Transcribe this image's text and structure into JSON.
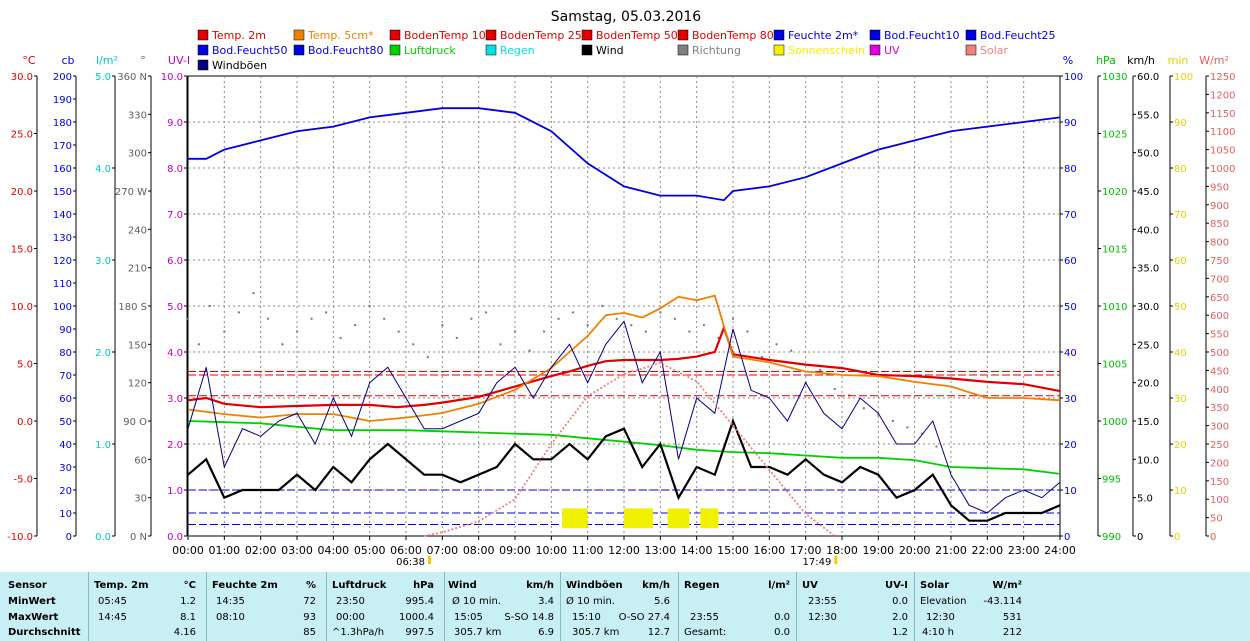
{
  "title": "Samstag, 05.03.2016",
  "legend": [
    {
      "label": "Temp. 2m",
      "color": "#e00000"
    },
    {
      "label": "Temp. 5cm*",
      "color": "#f08000"
    },
    {
      "label": "BodenTemp 10",
      "color": "#e00000"
    },
    {
      "label": "BodenTemp 25",
      "color": "#e00000"
    },
    {
      "label": "BodenTemp 50",
      "color": "#e00000"
    },
    {
      "label": "BodenTemp 80",
      "color": "#e00000"
    },
    {
      "label": "Feuchte 2m*",
      "color": "#0000e0"
    },
    {
      "label": "Bod.Feucht10",
      "color": "#0000e0"
    },
    {
      "label": "Bod.Feucht25",
      "color": "#0000e0"
    },
    {
      "label": "Bod.Feucht50",
      "color": "#0000e0"
    },
    {
      "label": "Bod.Feucht80",
      "color": "#0000e0"
    },
    {
      "label": "Luftdruck",
      "color": "#00d000"
    },
    {
      "label": "Regen",
      "color": "#00e0e0"
    },
    {
      "label": "Wind",
      "color": "#000000"
    },
    {
      "label": "Richtung",
      "color": "#808080"
    },
    {
      "label": "Sonnenschein",
      "color": "#f0f000"
    },
    {
      "label": "UV",
      "color": "#e000e0"
    },
    {
      "label": "Solar",
      "color": "#f08080"
    },
    {
      "label": "Windböen",
      "color": "#000080"
    }
  ],
  "chart_data": {
    "type": "line",
    "title": "Samstag, 05.03.2016",
    "x_ticks": [
      "00:00",
      "01:00",
      "02:00",
      "03:00",
      "04:00",
      "05:00",
      "06:00",
      "07:00",
      "08:00",
      "09:00",
      "10:00",
      "11:00",
      "12:00",
      "13:00",
      "14:00",
      "15:00",
      "16:00",
      "17:00",
      "18:00",
      "19:00",
      "20:00",
      "21:00",
      "22:00",
      "23:00",
      "24:00"
    ],
    "sunrise": "06:38",
    "sunset": "17:49",
    "grid": true,
    "axes": {
      "temp": {
        "unit": "°C",
        "color": "#e00000",
        "min": -10,
        "max": 30,
        "ticks": [
          "-10.0",
          "-5.0",
          "0.0",
          "5.0",
          "10.0",
          "15.0",
          "20.0",
          "25.0",
          "30.0"
        ]
      },
      "cb": {
        "unit": "cb",
        "color": "#0000e0",
        "min": 0,
        "max": 200,
        "ticks": [
          "0",
          "10",
          "20",
          "30",
          "40",
          "50",
          "60",
          "70",
          "80",
          "90",
          "100",
          "110",
          "120",
          "130",
          "140",
          "150",
          "160",
          "170",
          "180",
          "190",
          "200"
        ]
      },
      "rain": {
        "unit": "l/m²",
        "color": "#00c8c8",
        "min": 0,
        "max": 5,
        "ticks": [
          "0.0",
          "1.0",
          "2.0",
          "3.0",
          "4.0",
          "5.0"
        ]
      },
      "dir": {
        "unit": "°",
        "color": "#606060",
        "min": 0,
        "max": 360,
        "ticks": [
          "0 N",
          "30",
          "60",
          "90 O",
          "120",
          "150",
          "180 S",
          "210",
          "240",
          "270 W",
          "300",
          "330",
          "360 N"
        ]
      },
      "uv": {
        "unit": "UV-I",
        "color": "#c000c0",
        "min": 0,
        "max": 10,
        "ticks": [
          "0.0",
          "1.0",
          "2.0",
          "3.0",
          "4.0",
          "5.0",
          "6.0",
          "7.0",
          "8.0",
          "9.0",
          "10.0"
        ]
      },
      "hum": {
        "unit": "%",
        "color": "#0000e0",
        "min": 0,
        "max": 100,
        "ticks": [
          "0",
          "10",
          "20",
          "30",
          "40",
          "50",
          "60",
          "70",
          "80",
          "90",
          "100"
        ]
      },
      "press": {
        "unit": "hPa",
        "color": "#00c000",
        "min": 990,
        "max": 1030,
        "ticks": [
          "990",
          "995",
          "1000",
          "1005",
          "1010",
          "1015",
          "1020",
          "1025",
          "1030"
        ]
      },
      "wind": {
        "unit": "km/h",
        "color": "#000000",
        "min": 0,
        "max": 60,
        "ticks": [
          "0",
          "5.0",
          "10.0",
          "15.0",
          "20.0",
          "25.0",
          "30.0",
          "35.0",
          "40.0",
          "45.0",
          "50.0",
          "55.0",
          "60.0"
        ]
      },
      "sun": {
        "unit": "min",
        "color": "#e8d000",
        "min": 0,
        "max": 100,
        "ticks": [
          "0",
          "10",
          "20",
          "30",
          "40",
          "50",
          "60",
          "70",
          "80",
          "90",
          "100"
        ]
      },
      "solar": {
        "unit": "W/m²",
        "color": "#e06060",
        "min": 0,
        "max": 1250,
        "ticks": [
          "0",
          "50",
          "100",
          "150",
          "200",
          "250",
          "300",
          "350",
          "400",
          "450",
          "500",
          "550",
          "600",
          "650",
          "700",
          "750",
          "800",
          "850",
          "900",
          "950",
          "1000",
          "1050",
          "1100",
          "1150",
          "1200",
          "1250"
        ]
      }
    },
    "series": [
      {
        "name": "Temp. 2m",
        "axis": "temp",
        "color": "#e00000",
        "x": [
          0,
          0.5,
          1,
          2,
          3,
          4,
          5,
          5.75,
          6.5,
          7,
          8,
          9,
          10,
          10.5,
          11,
          11.5,
          12,
          13,
          13.5,
          14,
          14.5,
          14.75,
          15,
          16,
          17,
          18,
          19,
          20,
          21,
          22,
          23,
          24
        ],
        "y": [
          1.8,
          2.0,
          1.5,
          1.2,
          1.3,
          1.4,
          1.4,
          1.2,
          1.4,
          1.6,
          2.1,
          3.0,
          3.9,
          4.3,
          4.8,
          5.2,
          5.3,
          5.3,
          5.4,
          5.6,
          6.0,
          8.1,
          5.8,
          5.3,
          4.9,
          4.6,
          4.0,
          3.9,
          3.7,
          3.4,
          3.2,
          2.6
        ]
      },
      {
        "name": "Temp. 5cm*",
        "axis": "temp",
        "color": "#f08000",
        "x": [
          0,
          1,
          2,
          3,
          4,
          5,
          6,
          7,
          8,
          9,
          10,
          10.5,
          11,
          11.5,
          12,
          12.5,
          13,
          13.5,
          14,
          14.5,
          15,
          16,
          17,
          18,
          19,
          20,
          21,
          22,
          23,
          24
        ],
        "y": [
          1.0,
          0.6,
          0.3,
          0.6,
          0.6,
          0.0,
          0.3,
          0.7,
          1.5,
          2.7,
          4.6,
          6.0,
          7.4,
          9.2,
          9.4,
          9.0,
          9.8,
          10.8,
          10.5,
          10.9,
          5.6,
          5.1,
          4.3,
          4.0,
          3.9,
          3.4,
          3.0,
          2.0,
          2.0,
          1.8
        ]
      },
      {
        "name": "Feuchte 2m*",
        "axis": "hum",
        "color": "#0000e0",
        "x": [
          0,
          0.5,
          1,
          2,
          3,
          4,
          5,
          6,
          7,
          7.5,
          8,
          9,
          10,
          11,
          12,
          13,
          14,
          14.75,
          15,
          16,
          17,
          18,
          19,
          20,
          21,
          22,
          23,
          24
        ],
        "y": [
          82,
          82,
          84,
          86,
          88,
          89,
          91,
          92,
          93,
          93,
          93,
          92,
          88,
          81,
          76,
          74,
          74,
          73,
          75,
          76,
          78,
          81,
          84,
          86,
          88,
          89,
          90,
          91
        ]
      },
      {
        "name": "Luftdruck",
        "axis": "press",
        "color": "#00d000",
        "x": [
          0,
          1,
          2,
          3,
          4,
          5,
          6,
          7,
          8,
          9,
          10,
          11,
          12,
          13,
          14,
          15,
          16,
          17,
          18,
          19,
          20,
          21,
          22,
          23,
          24
        ],
        "y": [
          1000.0,
          999.9,
          999.8,
          999.5,
          999.2,
          999.2,
          999.2,
          999.1,
          999.0,
          998.9,
          998.8,
          998.5,
          998.2,
          997.9,
          997.5,
          997.3,
          997.2,
          997.0,
          996.8,
          996.8,
          996.6,
          996.0,
          995.9,
          995.8,
          995.4
        ]
      },
      {
        "name": "Wind",
        "axis": "wind",
        "color": "#000000",
        "x": [
          0,
          0.5,
          1,
          1.5,
          2,
          2.5,
          3,
          3.5,
          4,
          4.5,
          5,
          5.5,
          6,
          6.5,
          7,
          7.5,
          8,
          8.5,
          9,
          9.5,
          10,
          10.5,
          11,
          11.5,
          12,
          12.5,
          13,
          13.5,
          14,
          14.5,
          15,
          15.5,
          16,
          16.5,
          17,
          17.5,
          18,
          18.5,
          19,
          19.5,
          20,
          20.5,
          21,
          21.5,
          22,
          22.5,
          23,
          23.5,
          24
        ],
        "y": [
          8,
          10,
          5,
          6,
          6,
          6,
          8,
          6,
          9,
          7,
          10,
          12,
          10,
          8,
          8,
          7,
          8,
          9,
          12,
          10,
          10,
          12,
          10,
          13,
          14,
          9,
          12,
          5,
          9,
          8,
          15,
          9,
          9,
          8,
          10,
          8,
          7,
          9,
          8,
          5,
          6,
          8,
          4,
          2,
          2,
          3,
          3,
          3,
          4
        ]
      },
      {
        "name": "Windböen",
        "axis": "wind",
        "color": "#000080",
        "x": [
          0,
          0.5,
          1,
          1.5,
          2,
          2.5,
          3,
          3.5,
          4,
          4.5,
          5,
          5.5,
          6,
          6.5,
          7,
          7.5,
          8,
          8.5,
          9,
          9.5,
          10,
          10.5,
          11,
          11.5,
          12,
          12.5,
          13,
          13.5,
          14,
          14.5,
          15,
          15.5,
          16,
          16.5,
          17,
          17.5,
          18,
          18.5,
          19,
          19.5,
          20,
          20.5,
          21,
          21.5,
          22,
          22.5,
          23,
          23.5,
          24
        ],
        "y": [
          14,
          22,
          9,
          14,
          13,
          15,
          16,
          12,
          18,
          13,
          20,
          22,
          18,
          14,
          14,
          15,
          16,
          20,
          22,
          18,
          22,
          25,
          20,
          25,
          28,
          20,
          24,
          10,
          18,
          16,
          27,
          19,
          18,
          15,
          20,
          16,
          14,
          18,
          16,
          12,
          12,
          15,
          8,
          4,
          3,
          5,
          6,
          5,
          7
        ]
      },
      {
        "name": "Solar",
        "axis": "solar",
        "color": "#f08080",
        "x": [
          6.5,
          7,
          8,
          9,
          10,
          11,
          12,
          13,
          14,
          15,
          16,
          17,
          17.8
        ],
        "y": [
          0,
          10,
          40,
          100,
          250,
          380,
          440,
          470,
          420,
          300,
          180,
          60,
          0
        ]
      },
      {
        "name": "Sonnenschein",
        "axis": "sun",
        "color": "#f0f000",
        "x": [
          10.3,
          11,
          12,
          12.8,
          13.2,
          13.8,
          14.1,
          14.6,
          15.1
        ],
        "y": [
          6,
          6,
          6,
          6,
          6,
          6,
          6,
          6,
          6
        ]
      }
    ],
    "direction_points": {
      "name": "Richtung",
      "axis": "dir",
      "color": "#808080",
      "x": [
        0,
        0.3,
        0.6,
        1,
        1.4,
        1.8,
        2.2,
        2.6,
        3,
        3.4,
        3.8,
        4.2,
        4.6,
        5,
        5.4,
        5.8,
        6.2,
        6.6,
        7,
        7.4,
        7.8,
        8.2,
        8.6,
        9,
        9.4,
        9.8,
        10.2,
        10.6,
        11,
        11.4,
        11.8,
        12.2,
        12.6,
        13,
        13.4,
        13.8,
        14.2,
        14.6,
        15,
        15.4,
        15.8,
        16.2,
        16.6,
        17,
        17.4,
        17.8,
        18.2,
        18.6,
        19,
        19.4,
        19.8,
        20.2,
        20.6
      ],
      "y": [
        170,
        150,
        180,
        160,
        175,
        190,
        170,
        150,
        160,
        170,
        175,
        155,
        165,
        180,
        170,
        160,
        150,
        140,
        165,
        155,
        170,
        175,
        150,
        160,
        145,
        160,
        170,
        175,
        165,
        180,
        170,
        165,
        160,
        175,
        170,
        160,
        165,
        155,
        170,
        160,
        140,
        150,
        145,
        120,
        130,
        115,
        110,
        100,
        95,
        90,
        85,
        80,
        70
      ]
    }
  },
  "stats": {
    "sensor": {
      "title": "Sensor",
      "rows": [
        "MinWert",
        "MaxWert",
        "Durchschnitt"
      ]
    },
    "temp": {
      "title": "Temp. 2m",
      "unit": "°C",
      "rows": [
        [
          "05:45",
          "1.2"
        ],
        [
          "14:45",
          "8.1"
        ],
        [
          "",
          "4.16"
        ]
      ]
    },
    "hum": {
      "title": "Feuchte 2m",
      "unit": "%",
      "rows": [
        [
          "14:35",
          "72"
        ],
        [
          "08:10",
          "93"
        ],
        [
          "",
          "85"
        ]
      ]
    },
    "press": {
      "title": "Luftdruck",
      "unit": "hPa",
      "rows": [
        [
          "23:50",
          "995.4"
        ],
        [
          "00:00",
          "1000.4"
        ],
        [
          "^1.3hPa/h",
          "997.5"
        ]
      ]
    },
    "wind": {
      "title": "Wind",
      "unit": "km/h",
      "rows": [
        [
          "Ø 10 min.",
          "",
          "3.4"
        ],
        [
          "15:05",
          "S-SO 14.8",
          ""
        ],
        [
          "305.7 km",
          "",
          "6.9"
        ]
      ]
    },
    "gust": {
      "title": "Windböen",
      "unit": "km/h",
      "rows": [
        [
          "Ø 10 min.",
          "",
          "5.6"
        ],
        [
          "15:10",
          "O-SO 27.4",
          ""
        ],
        [
          "305.7 km",
          "",
          "12.7"
        ]
      ]
    },
    "rain": {
      "title": "Regen",
      "unit": "l/m²",
      "rows": [
        [
          "",
          "",
          ""
        ],
        [
          "23:55",
          "",
          "0.0"
        ],
        [
          "Gesamt:",
          "",
          "0.0"
        ]
      ]
    },
    "uv": {
      "title": "UV",
      "unit": "UV-I",
      "rows": [
        [
          "23:55",
          "0.0"
        ],
        [
          "12:30",
          "2.0"
        ],
        [
          "",
          "1.2"
        ]
      ]
    },
    "solar": {
      "title": "Solar",
      "unit": "W/m²",
      "rows": [
        [
          "Elevation",
          "-43.114"
        ],
        [
          "12:30",
          "531"
        ],
        [
          "4:10 h",
          "212"
        ]
      ]
    }
  }
}
